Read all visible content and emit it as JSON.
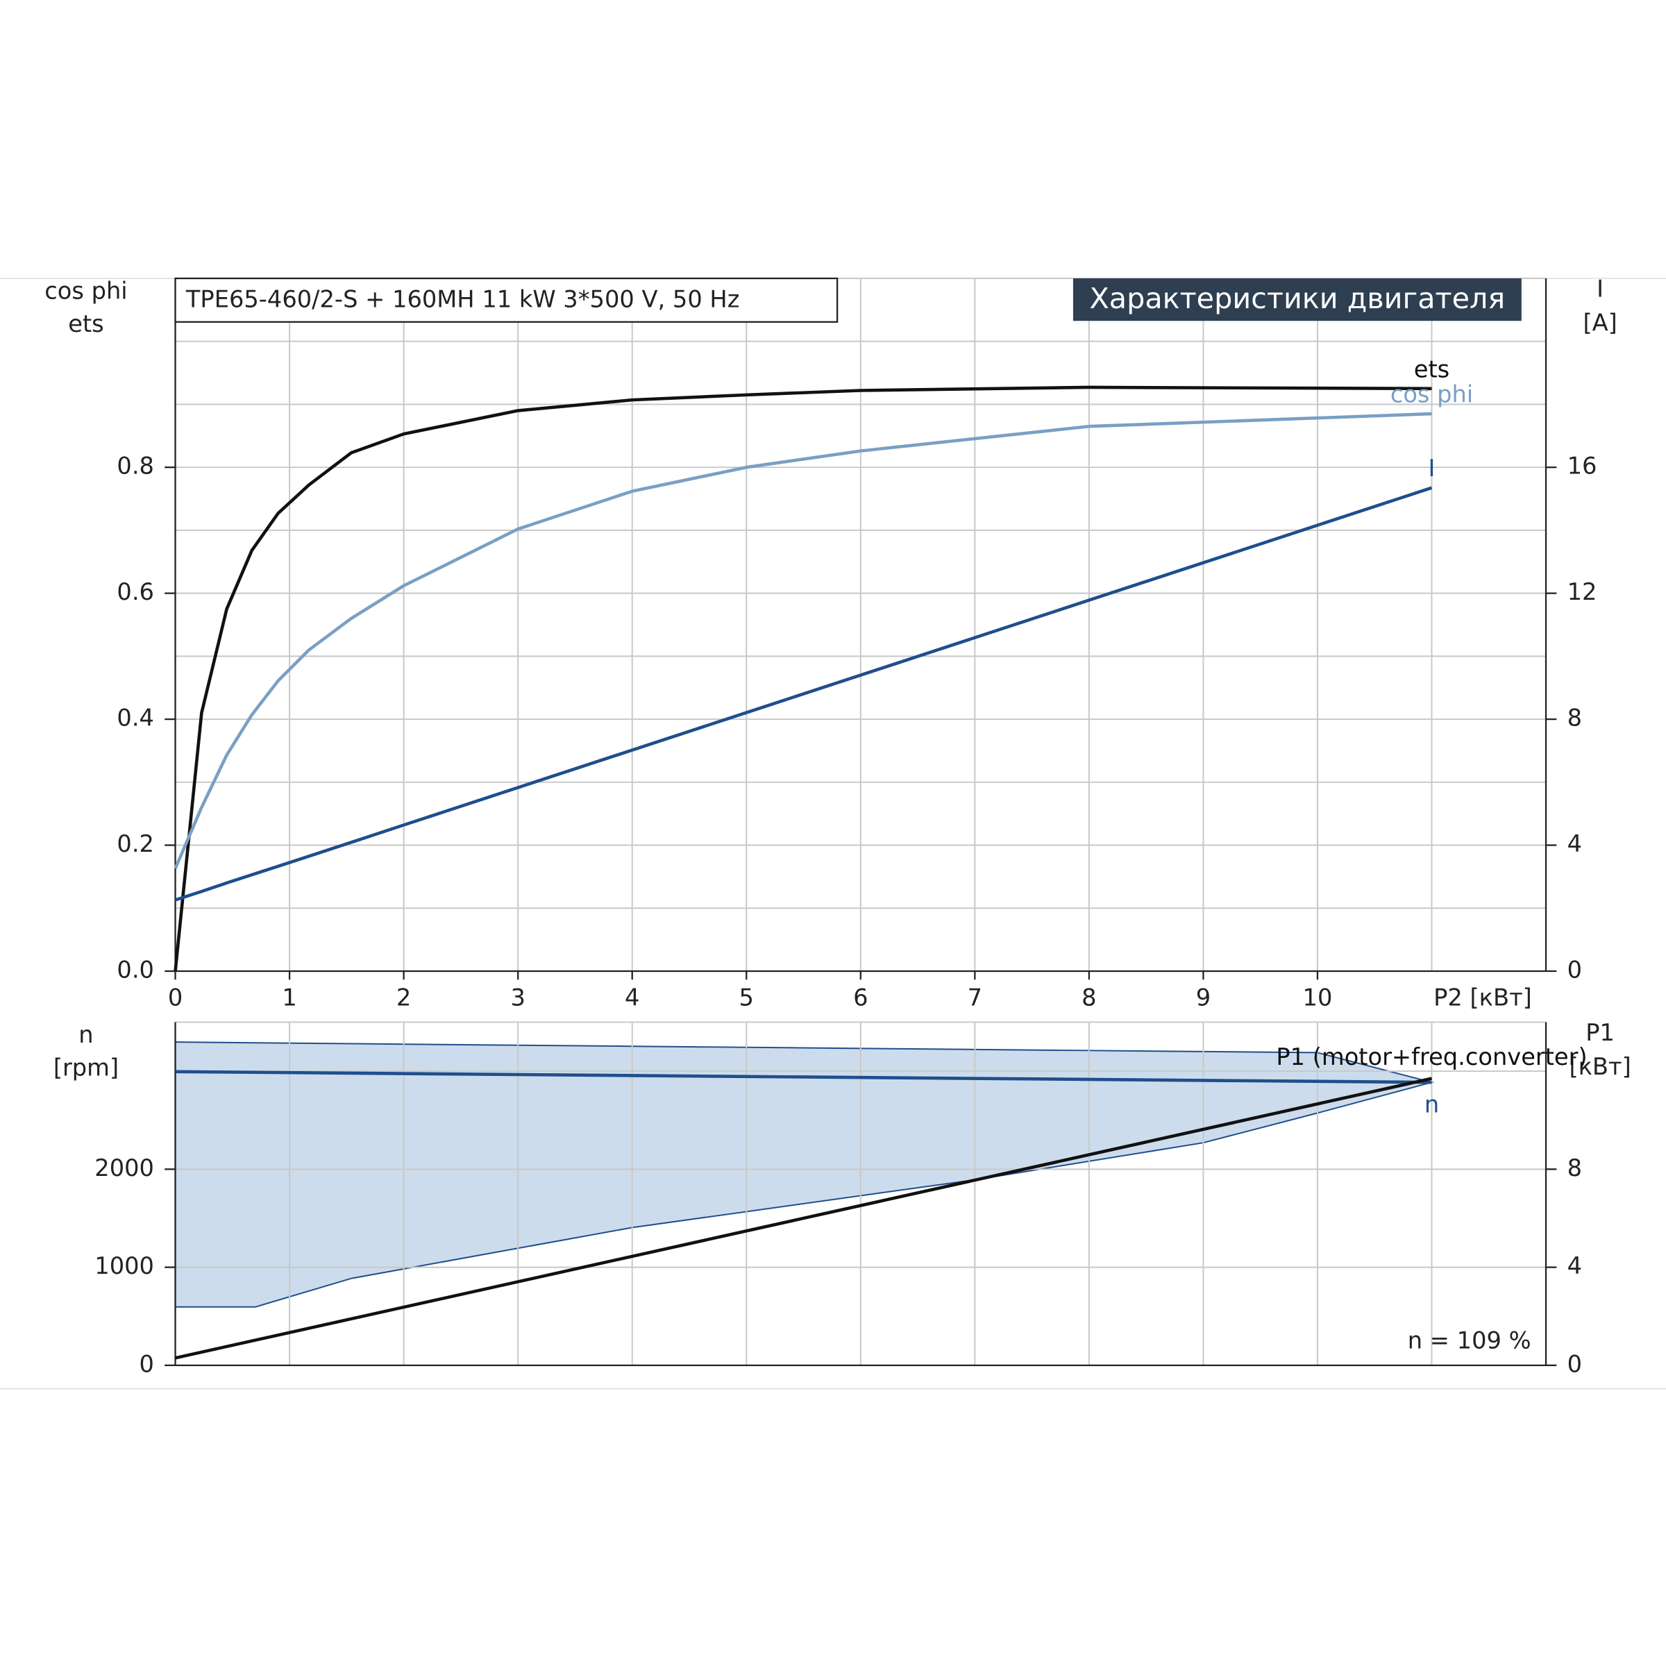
{
  "chart_data": [
    {
      "type": "line",
      "title": "TPE65-460/2-S + 160MH   11 kW   3*500 V, 50 Hz",
      "badge": "Характеристики двигателя",
      "y_label": [
        "cos phi",
        "ets"
      ],
      "y2_label": [
        "I",
        "[A]"
      ],
      "x_label": "P2 [кВт]",
      "xlim": [
        0,
        12
      ],
      "xticks": [
        0,
        1,
        2,
        3,
        4,
        5,
        6,
        7,
        8,
        9,
        10
      ],
      "grid_x": [
        1,
        2,
        3,
        4,
        5,
        6,
        7,
        8,
        9,
        10,
        11
      ],
      "ylim": [
        0,
        1.1
      ],
      "yticks": [
        {
          "value": 0,
          "label": "0.0"
        },
        0.2,
        0.4,
        0.6,
        0.8
      ],
      "grid_y": [
        0.1,
        0.2,
        0.3,
        0.4,
        0.5,
        0.6,
        0.7,
        0.8,
        0.9,
        1.0
      ],
      "y2lim": [
        0,
        22
      ],
      "y2ticks": [
        0,
        4,
        8,
        12,
        16
      ],
      "series": [
        {
          "name": "ets",
          "color": "#111111",
          "x": [
            0,
            0.23,
            0.45,
            0.67,
            0.9,
            1.17,
            1.54,
            2,
            3,
            4,
            5,
            6,
            8,
            11
          ],
          "values": [
            0,
            0.41,
            0.575,
            0.668,
            0.727,
            0.772,
            0.823,
            0.853,
            0.89,
            0.907,
            0.915,
            0.922,
            0.927,
            0.925
          ]
        },
        {
          "name": "cos phi",
          "color": "#7a9fc4",
          "x": [
            0,
            0.23,
            0.45,
            0.67,
            0.9,
            1.17,
            1.54,
            2,
            3,
            4,
            5,
            6,
            8,
            11
          ],
          "values": [
            0.163,
            0.26,
            0.343,
            0.407,
            0.461,
            0.51,
            0.56,
            0.612,
            0.702,
            0.762,
            0.8,
            0.826,
            0.865,
            0.885
          ]
        },
        {
          "name": "I",
          "color": "#1f4e8c",
          "axis": "y2",
          "x": [
            0,
            0.23,
            0.45,
            0.67,
            0.9,
            1.17,
            1.54,
            2,
            3,
            4,
            5,
            6,
            8,
            11
          ],
          "values": [
            2.26,
            2.53,
            2.8,
            3.06,
            3.33,
            3.65,
            4.09,
            4.64,
            5.83,
            7.02,
            8.21,
            9.4,
            11.78,
            15.35
          ]
        }
      ]
    },
    {
      "type": "line",
      "y_label": [
        "n",
        "[rpm]"
      ],
      "y2_label": [
        "P1",
        "[кВт]"
      ],
      "xlim": [
        0,
        12
      ],
      "grid_x": [
        1,
        2,
        3,
        4,
        5,
        6,
        7,
        8,
        9,
        10,
        11
      ],
      "ylim": [
        0,
        3500
      ],
      "yticks": [
        0,
        1000,
        2000
      ],
      "grid_y": [
        1000,
        2000,
        3000
      ],
      "y2lim": [
        0,
        14
      ],
      "y2ticks": [
        0,
        4,
        8
      ],
      "area": {
        "color": "#cddcec",
        "x": [
          0,
          0.7,
          1.54,
          4,
          7,
          9,
          10,
          11
        ],
        "upper": [
          3297,
          3289,
          3280,
          3254,
          3221,
          3200,
          3189,
          2886
        ],
        "lower": [
          595,
          595,
          886,
          1405,
          1892,
          2270,
          2573,
          2886
        ]
      },
      "series": [
        {
          "name": "n",
          "color": "#1f4e8c",
          "x": [
            0,
            11
          ],
          "values": [
            2995,
            2886
          ]
        },
        {
          "name": "P1 (motor+freq.converter)",
          "color": "#111111",
          "axis": "y2",
          "x": [
            0,
            11
          ],
          "values": [
            0.3,
            11.7
          ]
        }
      ],
      "annotation": "n = 109 %"
    }
  ]
}
